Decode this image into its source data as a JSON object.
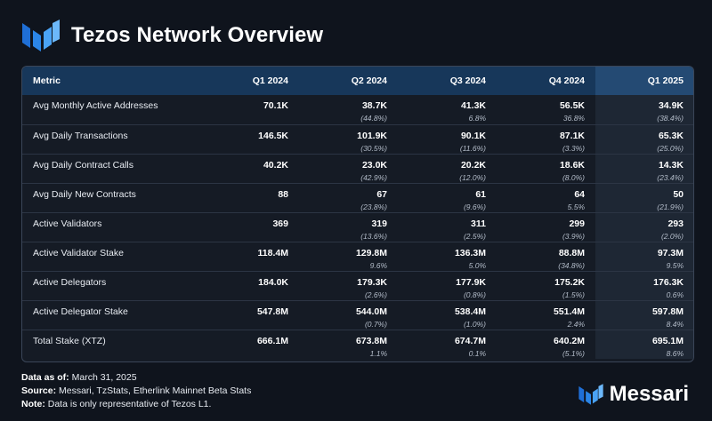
{
  "title": "Tezos Network Overview",
  "accent_color": "#2b86e8",
  "icons": {
    "header_logo": "messari-logo-icon",
    "brand_logo": "messari-logo-icon"
  },
  "table": {
    "headers": [
      "Metric",
      "Q1 2024",
      "Q2 2024",
      "Q3 2024",
      "Q4 2024",
      "Q1 2025"
    ],
    "rows": [
      {
        "metric": "Avg Monthly Active Addresses",
        "cells": [
          {
            "v": "70.1K",
            "c": ""
          },
          {
            "v": "38.7K",
            "c": "(44.8%)"
          },
          {
            "v": "41.3K",
            "c": "6.8%"
          },
          {
            "v": "56.5K",
            "c": "36.8%"
          },
          {
            "v": "34.9K",
            "c": "(38.4%)"
          }
        ]
      },
      {
        "metric": "Avg Daily Transactions",
        "cells": [
          {
            "v": "146.5K",
            "c": ""
          },
          {
            "v": "101.9K",
            "c": "(30.5%)"
          },
          {
            "v": "90.1K",
            "c": "(11.6%)"
          },
          {
            "v": "87.1K",
            "c": "(3.3%)"
          },
          {
            "v": "65.3K",
            "c": "(25.0%)"
          }
        ]
      },
      {
        "metric": "Avg Daily Contract Calls",
        "cells": [
          {
            "v": "40.2K",
            "c": ""
          },
          {
            "v": "23.0K",
            "c": "(42.9%)"
          },
          {
            "v": "20.2K",
            "c": "(12.0%)"
          },
          {
            "v": "18.6K",
            "c": "(8.0%)"
          },
          {
            "v": "14.3K",
            "c": "(23.4%)"
          }
        ]
      },
      {
        "metric": "Avg Daily New Contracts",
        "cells": [
          {
            "v": "88",
            "c": ""
          },
          {
            "v": "67",
            "c": "(23.8%)"
          },
          {
            "v": "61",
            "c": "(9.6%)"
          },
          {
            "v": "64",
            "c": "5.5%"
          },
          {
            "v": "50",
            "c": "(21.9%)"
          }
        ]
      },
      {
        "metric": "Active Validators",
        "cells": [
          {
            "v": "369",
            "c": ""
          },
          {
            "v": "319",
            "c": "(13.6%)"
          },
          {
            "v": "311",
            "c": "(2.5%)"
          },
          {
            "v": "299",
            "c": "(3.9%)"
          },
          {
            "v": "293",
            "c": "(2.0%)"
          }
        ]
      },
      {
        "metric": "Active Validator Stake",
        "cells": [
          {
            "v": "118.4M",
            "c": ""
          },
          {
            "v": "129.8M",
            "c": "9.6%"
          },
          {
            "v": "136.3M",
            "c": "5.0%"
          },
          {
            "v": "88.8M",
            "c": "(34.8%)"
          },
          {
            "v": "97.3M",
            "c": "9.5%"
          }
        ]
      },
      {
        "metric": "Active Delegators",
        "cells": [
          {
            "v": "184.0K",
            "c": ""
          },
          {
            "v": "179.3K",
            "c": "(2.6%)"
          },
          {
            "v": "177.9K",
            "c": "(0.8%)"
          },
          {
            "v": "175.2K",
            "c": "(1.5%)"
          },
          {
            "v": "176.3K",
            "c": "0.6%"
          }
        ]
      },
      {
        "metric": "Active Delegator Stake",
        "cells": [
          {
            "v": "547.8M",
            "c": ""
          },
          {
            "v": "544.0M",
            "c": "(0.7%)"
          },
          {
            "v": "538.4M",
            "c": "(1.0%)"
          },
          {
            "v": "551.4M",
            "c": "2.4%"
          },
          {
            "v": "597.8M",
            "c": "8.4%"
          }
        ]
      },
      {
        "metric": "Total Stake (XTZ)",
        "cells": [
          {
            "v": "666.1M",
            "c": ""
          },
          {
            "v": "673.8M",
            "c": "1.1%"
          },
          {
            "v": "674.7M",
            "c": "0.1%"
          },
          {
            "v": "640.2M",
            "c": "(5.1%)"
          },
          {
            "v": "695.1M",
            "c": "8.6%"
          }
        ]
      }
    ]
  },
  "footer": {
    "as_of_label": "Data as of:",
    "as_of_value": " March 31, 2025",
    "source_label": "Source:",
    "source_value": " Messari, TzStats, Etherlink Mainnet Beta Stats",
    "note_label": "Note:",
    "note_value": " Data is only representative of Tezos L1."
  },
  "brand": "Messari"
}
